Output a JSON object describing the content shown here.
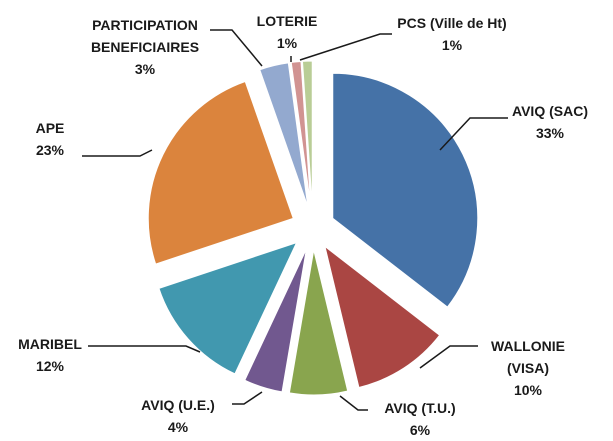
{
  "chart_data": {
    "type": "pie",
    "categories": [
      "AVIQ (SAC)",
      "WALLONIE (VISA)",
      "AVIQ (T.U.)",
      "AVIQ (U.E.)",
      "MARIBEL",
      "APE",
      "PARTICIPATION BENEFICIAIRES",
      "LOTERIE",
      "PCS (Ville de Ht)"
    ],
    "values": [
      33,
      10,
      6,
      4,
      12,
      23,
      3,
      1,
      1
    ],
    "value_labels": [
      "33%",
      "10%",
      "6%",
      "4%",
      "12%",
      "23%",
      "3%",
      "1%",
      "1%"
    ],
    "colors": [
      "#4572a7",
      "#aa4643",
      "#89a54e",
      "#71588f",
      "#4198af",
      "#db843d",
      "#93a9cf",
      "#d19392",
      "#b9cd96"
    ]
  }
}
